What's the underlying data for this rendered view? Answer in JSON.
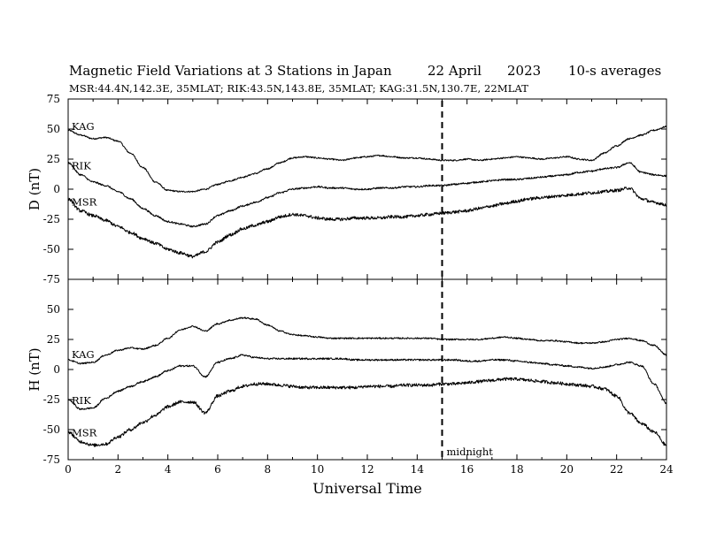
{
  "header": {
    "title": "Magnetic Field Variations at 3 Stations in Japan",
    "date": "22  April",
    "year": "2023",
    "averaging": "10-s averages",
    "stations_line": "MSR:44.4N,142.3E, 35MLAT;  RIK:43.5N,143.8E, 35MLAT;  KAG:31.5N,130.7E, 22MLAT"
  },
  "chart_data": [
    {
      "type": "line",
      "panel": "top",
      "ylabel": "D (nT)",
      "ylim": [
        -75,
        75
      ],
      "yticks": [
        75,
        50,
        25,
        0,
        -25,
        -50,
        -75
      ],
      "xlim": [
        0,
        24
      ],
      "grid": false,
      "x": [
        0,
        0.5,
        1,
        1.5,
        2,
        2.5,
        3,
        3.5,
        4,
        4.5,
        5,
        5.5,
        6,
        6.5,
        7,
        7.5,
        8,
        8.5,
        9,
        9.5,
        10,
        10.5,
        11,
        11.5,
        12,
        12.5,
        13,
        13.5,
        14,
        14.5,
        15,
        15.5,
        16,
        16.5,
        17,
        17.5,
        18,
        18.5,
        19,
        19.5,
        20,
        20.5,
        21,
        21.5,
        22,
        22.5,
        23,
        23.5,
        24
      ],
      "series": [
        {
          "name": "KAG",
          "values": [
            49,
            45,
            42,
            43,
            40,
            30,
            18,
            6,
            -1,
            -2,
            -2,
            0,
            4,
            7,
            10,
            13,
            17,
            22,
            26,
            27,
            26,
            25,
            24,
            26,
            27,
            28,
            27,
            26,
            26,
            25,
            24,
            24,
            25,
            24,
            25,
            26,
            27,
            26,
            25,
            26,
            27,
            25,
            24,
            30,
            36,
            42,
            45,
            49,
            52
          ]
        },
        {
          "name": "RIK",
          "values": [
            22,
            12,
            6,
            3,
            -2,
            -8,
            -16,
            -22,
            -27,
            -29,
            -31,
            -29,
            -22,
            -18,
            -14,
            -11,
            -7,
            -3,
            0,
            1,
            2,
            1,
            1,
            0,
            0,
            1,
            1,
            2,
            2,
            3,
            3,
            4,
            5,
            6,
            7,
            8,
            8,
            9,
            10,
            11,
            12,
            14,
            15,
            17,
            18,
            22,
            14,
            12,
            11
          ]
        },
        {
          "name": "MSR",
          "values": [
            -8,
            -18,
            -22,
            -26,
            -31,
            -36,
            -41,
            -45,
            -50,
            -53,
            -56,
            -52,
            -44,
            -38,
            -33,
            -30,
            -27,
            -23,
            -21,
            -22,
            -24,
            -25,
            -25,
            -24,
            -24,
            -24,
            -23,
            -23,
            -22,
            -21,
            -20,
            -19,
            -18,
            -16,
            -14,
            -12,
            -10,
            -8,
            -7,
            -6,
            -5,
            -4,
            -3,
            -2,
            -1,
            1,
            -8,
            -11,
            -13
          ]
        }
      ]
    },
    {
      "type": "line",
      "panel": "bottom",
      "ylabel": "H (nT)",
      "xlabel": "Universal Time",
      "ylim": [
        -75,
        75
      ],
      "yticks": [
        50,
        25,
        0,
        -25,
        -50,
        -75
      ],
      "xlim": [
        0,
        24
      ],
      "xticks": [
        0,
        2,
        4,
        6,
        8,
        10,
        12,
        14,
        16,
        18,
        20,
        22,
        24
      ],
      "grid": false,
      "x": [
        0,
        0.5,
        1,
        1.5,
        2,
        2.5,
        3,
        3.5,
        4,
        4.5,
        5,
        5.5,
        6,
        6.5,
        7,
        7.5,
        8,
        8.5,
        9,
        9.5,
        10,
        10.5,
        11,
        11.5,
        12,
        12.5,
        13,
        13.5,
        14,
        14.5,
        15,
        15.5,
        16,
        16.5,
        17,
        17.5,
        18,
        18.5,
        19,
        19.5,
        20,
        20.5,
        21,
        21.5,
        22,
        22.5,
        23,
        23.5,
        24
      ],
      "series": [
        {
          "name": "KAG",
          "values": [
            8,
            5,
            6,
            12,
            16,
            18,
            17,
            20,
            26,
            33,
            36,
            32,
            38,
            41,
            43,
            42,
            37,
            32,
            29,
            28,
            27,
            26,
            26,
            26,
            26,
            26,
            26,
            26,
            26,
            26,
            25,
            25,
            25,
            25,
            26,
            27,
            26,
            25,
            24,
            24,
            23,
            22,
            22,
            23,
            25,
            26,
            24,
            20,
            12
          ]
        },
        {
          "name": "RIK",
          "values": [
            -25,
            -33,
            -32,
            -24,
            -18,
            -14,
            -10,
            -6,
            -1,
            3,
            3,
            -6,
            6,
            9,
            12,
            10,
            9,
            9,
            9,
            9,
            9,
            9,
            9,
            8,
            8,
            8,
            8,
            8,
            8,
            8,
            8,
            8,
            7,
            7,
            8,
            8,
            7,
            6,
            5,
            4,
            3,
            2,
            1,
            2,
            4,
            6,
            3,
            -12,
            -28
          ]
        },
        {
          "name": "MSR",
          "values": [
            -52,
            -60,
            -63,
            -62,
            -56,
            -50,
            -44,
            -38,
            -31,
            -27,
            -27,
            -36,
            -22,
            -18,
            -14,
            -12,
            -12,
            -13,
            -14,
            -15,
            -15,
            -15,
            -15,
            -15,
            -14,
            -14,
            -14,
            -13,
            -13,
            -13,
            -12,
            -12,
            -11,
            -10,
            -9,
            -8,
            -8,
            -9,
            -10,
            -11,
            -12,
            -13,
            -14,
            -16,
            -22,
            -36,
            -45,
            -52,
            -63
          ]
        }
      ]
    }
  ],
  "annotations": {
    "midnight_label": "midnight",
    "midnight_ut": 15
  },
  "style": {
    "line_color": "#000000",
    "axis_color": "#000000",
    "background": "#ffffff"
  }
}
